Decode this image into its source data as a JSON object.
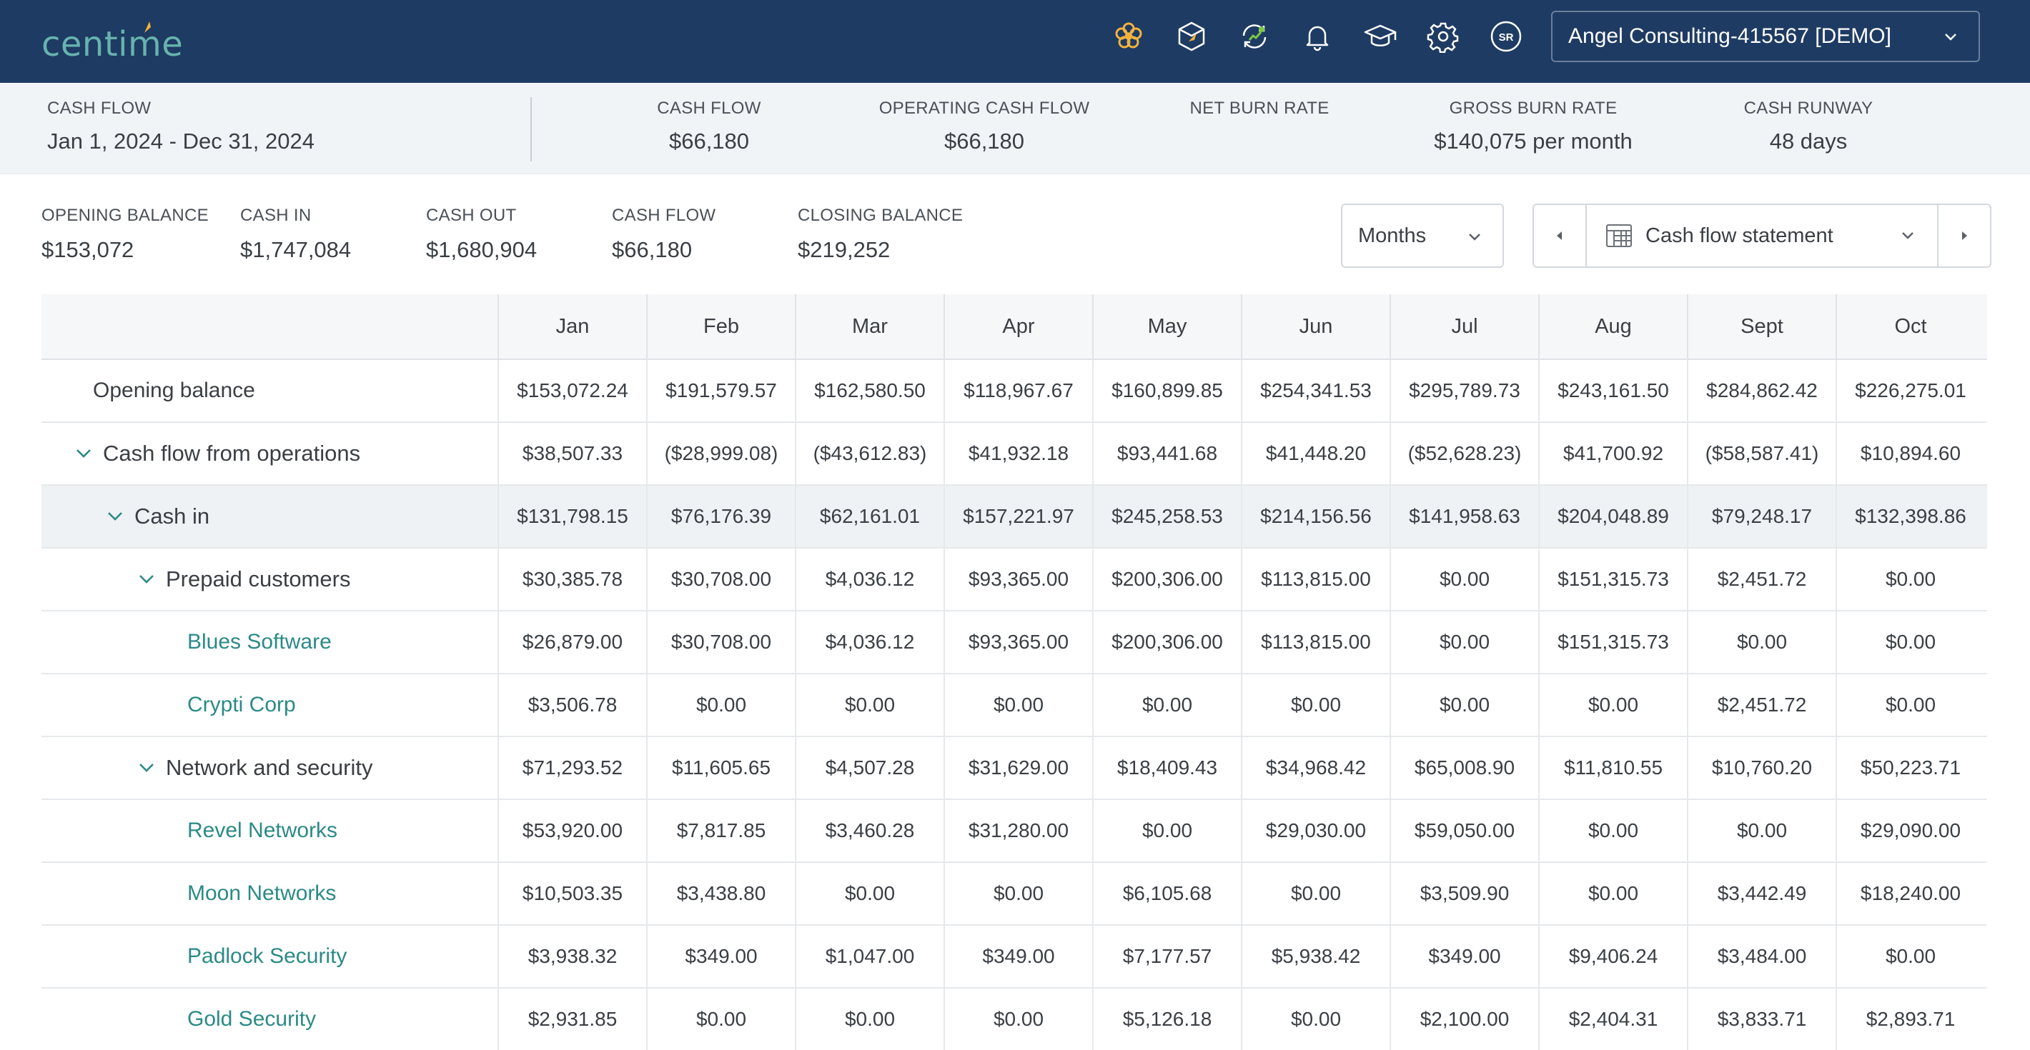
{
  "brand": {
    "logo_text": "centime",
    "accent": "#f2b33d",
    "logo_color": "#67b3ae",
    "topbar_color": "#1e3b63"
  },
  "topbar": {
    "icons": [
      "flower-icon",
      "box-rocket-icon",
      "refresh-dollar-icon",
      "bell-icon",
      "graduation-cap-icon",
      "gear-icon",
      "user-avatar-icon"
    ],
    "avatar_initials": "SR",
    "org_name": "Angel Consulting-415567 [DEMO]"
  },
  "summary": {
    "period_label": "CASH FLOW",
    "period_value": "Jan 1, 2024 - Dec 31, 2024",
    "metrics": [
      {
        "label": "CASH FLOW",
        "value": "$66,180"
      },
      {
        "label": "OPERATING CASH FLOW",
        "value": "$66,180"
      },
      {
        "label": "NET BURN RATE",
        "value": ""
      },
      {
        "label": "GROSS BURN RATE",
        "value": "$140,075 per month"
      },
      {
        "label": "CASH RUNWAY",
        "value": "48 days"
      }
    ]
  },
  "totals": [
    {
      "label": "OPENING BALANCE",
      "value": "$153,072"
    },
    {
      "label": "CASH IN",
      "value": "$1,747,084"
    },
    {
      "label": "CASH OUT",
      "value": "$1,680,904"
    },
    {
      "label": "CASH FLOW",
      "value": "$66,180"
    },
    {
      "label": "CLOSING BALANCE",
      "value": "$219,252"
    }
  ],
  "controls": {
    "period_select": "Months",
    "report_select": "Cash flow statement"
  },
  "table": {
    "columns": [
      "Jan",
      "Feb",
      "Mar",
      "Apr",
      "May",
      "Jun",
      "Jul",
      "Aug",
      "Sept",
      "Oct"
    ],
    "rows": [
      {
        "label": "Opening balance",
        "level": 0,
        "expandable": false,
        "highlight": false,
        "values": [
          "$153,072.24",
          "$191,579.57",
          "$162,580.50",
          "$118,967.67",
          "$160,899.85",
          "$254,341.53",
          "$295,789.73",
          "$243,161.50",
          "$284,862.42",
          "$226,275.01"
        ]
      },
      {
        "label": "Cash flow from operations",
        "level": 1,
        "expandable": true,
        "highlight": false,
        "values": [
          "$38,507.33",
          "($28,999.08)",
          "($43,612.83)",
          "$41,932.18",
          "$93,441.68",
          "$41,448.20",
          "($52,628.23)",
          "$41,700.92",
          "($58,587.41)",
          "$10,894.60"
        ]
      },
      {
        "label": "Cash in",
        "level": 2,
        "expandable": true,
        "highlight": true,
        "values": [
          "$131,798.15",
          "$76,176.39",
          "$62,161.01",
          "$157,221.97",
          "$245,258.53",
          "$214,156.56",
          "$141,958.63",
          "$204,048.89",
          "$79,248.17",
          "$132,398.86"
        ]
      },
      {
        "label": "Prepaid customers",
        "level": 3,
        "expandable": true,
        "highlight": false,
        "values": [
          "$30,385.78",
          "$30,708.00",
          "$4,036.12",
          "$93,365.00",
          "$200,306.00",
          "$113,815.00",
          "$0.00",
          "$151,315.73",
          "$2,451.72",
          "$0.00"
        ]
      },
      {
        "label": "Blues Software",
        "level": 4,
        "expandable": false,
        "highlight": false,
        "values": [
          "$26,879.00",
          "$30,708.00",
          "$4,036.12",
          "$93,365.00",
          "$200,306.00",
          "$113,815.00",
          "$0.00",
          "$151,315.73",
          "$0.00",
          "$0.00"
        ]
      },
      {
        "label": "Crypti Corp",
        "level": 4,
        "expandable": false,
        "highlight": false,
        "values": [
          "$3,506.78",
          "$0.00",
          "$0.00",
          "$0.00",
          "$0.00",
          "$0.00",
          "$0.00",
          "$0.00",
          "$2,451.72",
          "$0.00"
        ]
      },
      {
        "label": "Network and security",
        "level": 3,
        "expandable": true,
        "highlight": false,
        "values": [
          "$71,293.52",
          "$11,605.65",
          "$4,507.28",
          "$31,629.00",
          "$18,409.43",
          "$34,968.42",
          "$65,008.90",
          "$11,810.55",
          "$10,760.20",
          "$50,223.71"
        ]
      },
      {
        "label": "Revel Networks",
        "level": 4,
        "expandable": false,
        "highlight": false,
        "values": [
          "$53,920.00",
          "$7,817.85",
          "$3,460.28",
          "$31,280.00",
          "$0.00",
          "$29,030.00",
          "$59,050.00",
          "$0.00",
          "$0.00",
          "$29,090.00"
        ]
      },
      {
        "label": "Moon Networks",
        "level": 4,
        "expandable": false,
        "highlight": false,
        "values": [
          "$10,503.35",
          "$3,438.80",
          "$0.00",
          "$0.00",
          "$6,105.68",
          "$0.00",
          "$3,509.90",
          "$0.00",
          "$3,442.49",
          "$18,240.00"
        ]
      },
      {
        "label": "Padlock Security",
        "level": 4,
        "expandable": false,
        "highlight": false,
        "values": [
          "$3,938.32",
          "$349.00",
          "$1,047.00",
          "$349.00",
          "$7,177.57",
          "$5,938.42",
          "$349.00",
          "$9,406.24",
          "$3,484.00",
          "$0.00"
        ]
      },
      {
        "label": "Gold Security",
        "level": 4,
        "expandable": false,
        "highlight": false,
        "values": [
          "$2,931.85",
          "$0.00",
          "$0.00",
          "$0.00",
          "$5,126.18",
          "$0.00",
          "$2,100.00",
          "$2,404.31",
          "$3,833.71",
          "$2,893.71"
        ]
      }
    ]
  }
}
